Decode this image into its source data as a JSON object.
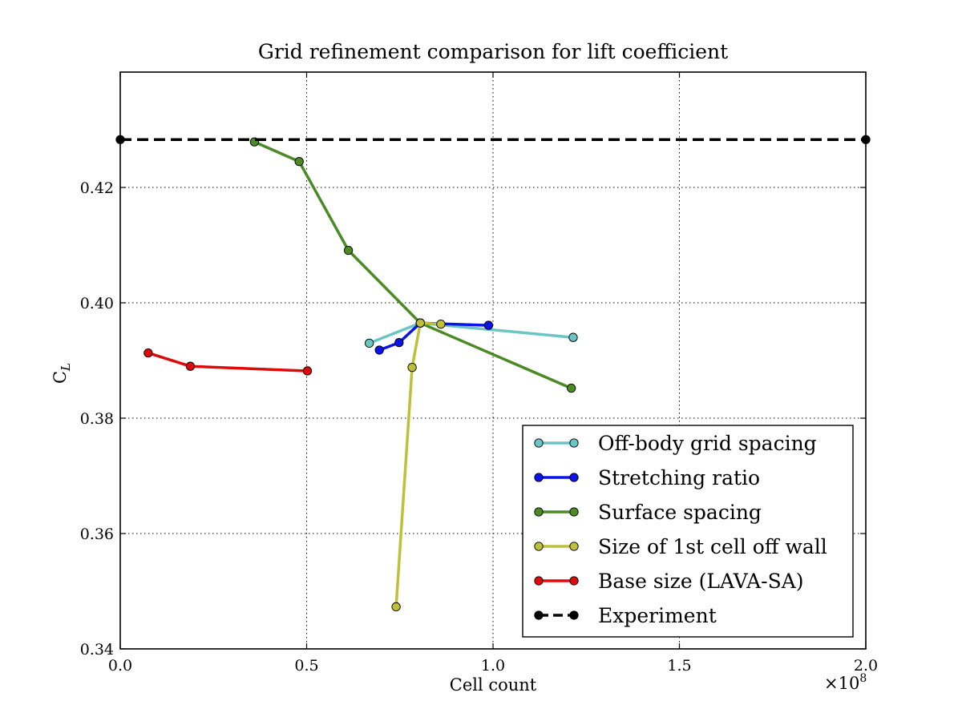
{
  "chart_data": {
    "type": "line",
    "title": "Grid refinement comparison for lift coefficient",
    "xlabel": "Cell count",
    "ylabel": "C",
    "ylabel_subscript": "L",
    "x_multiplier_label": "×10",
    "x_multiplier_exponent": "8",
    "xlim": [
      0.0,
      2.0
    ],
    "ylim": [
      0.34,
      0.44
    ],
    "xticks": [
      0.0,
      0.5,
      1.0,
      1.5,
      2.0
    ],
    "xtick_labels": [
      "0.0",
      "0.5",
      "1.0",
      "1.5",
      "2.0"
    ],
    "yticks": [
      0.34,
      0.36,
      0.38,
      0.4,
      0.42
    ],
    "ytick_labels": [
      "0.34",
      "0.36",
      "0.38",
      "0.40",
      "0.42"
    ],
    "grid": true,
    "legend_position": "bottom-right",
    "series": [
      {
        "name": "Off-body grid spacing",
        "color": "#6cc5c5",
        "dash": false,
        "x": [
          0.668,
          0.805,
          1.215
        ],
        "y": [
          0.393,
          0.3965,
          0.394
        ]
      },
      {
        "name": "Stretching ratio",
        "color": "#0a14e8",
        "dash": false,
        "x": [
          0.695,
          0.748,
          0.805,
          0.988
        ],
        "y": [
          0.3918,
          0.3931,
          0.3965,
          0.3961
        ]
      },
      {
        "name": "Surface spacing",
        "color": "#4b8a24",
        "dash": false,
        "x": [
          0.36,
          0.48,
          0.612,
          0.805,
          1.21
        ],
        "y": [
          0.4279,
          0.4245,
          0.4091,
          0.3965,
          0.3852
        ]
      },
      {
        "name": "Size of 1st cell off wall",
        "color": "#bfc039",
        "dash": false,
        "x": [
          0.74,
          0.783,
          0.805,
          0.86
        ],
        "y": [
          0.3473,
          0.3888,
          0.3965,
          0.3963
        ]
      },
      {
        "name": "Base size (LAVA-SA)",
        "color": "#dd0b0b",
        "dash": false,
        "x": [
          0.075,
          0.188,
          0.502
        ],
        "y": [
          0.3913,
          0.389,
          0.3882
        ]
      },
      {
        "name": "Experiment",
        "color": "#000000",
        "dash": true,
        "x": [
          0.0,
          2.0
        ],
        "y": [
          0.4283,
          0.4283
        ]
      }
    ]
  }
}
